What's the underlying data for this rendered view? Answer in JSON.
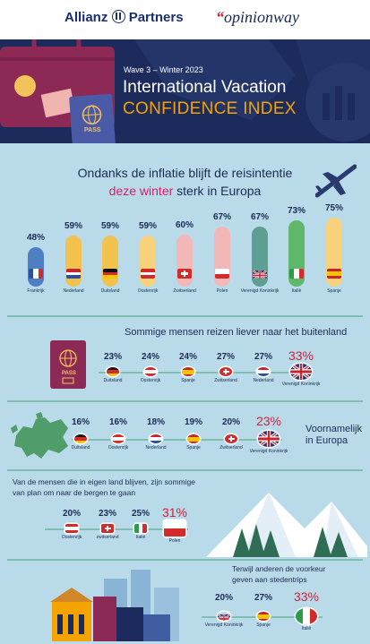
{
  "header": {
    "brand": "Allianz",
    "brand_suffix": "Partners",
    "partner": "opinionway",
    "partner_quote": "“",
    "wave": "Wave 3 – Winter 2023",
    "title_line1": "International Vacation",
    "title_line2": "CONFIDENCE INDEX",
    "pass_label": "PASS"
  },
  "headline": {
    "line1": "Ondanks de inflatie blijft de reisintentie",
    "line2_highlight": "deze winter",
    "line2_rest": " sterk in Europa"
  },
  "sections": {
    "abroad_title": "Sommige mensen reizen liever naar het buitenland",
    "europe_title_line1": "Voornamelijk",
    "europe_title_line2": "in Europa",
    "mountains_title_line1": "Van de mensen die in eigen land blijven, zijn sommige",
    "mountains_title_line2": "van plan om naar de bergen te gaan",
    "city_title_line1": "Terwijl anderen de voorkeur",
    "city_title_line2": "geven aan stedentrips"
  },
  "colors": {
    "navy": "#1c2b5c",
    "accent_orange": "#f4a300",
    "accent_pink": "#d21f6a",
    "accent_red": "#d21f3c",
    "background_light_blue": "#b9dbe9"
  },
  "chart_data": [
    {
      "type": "bar",
      "title": "Ondanks de inflatie blijft de reisintentie deze winter sterk in Europa",
      "categories": [
        "Frankrijk",
        "Nederland",
        "Duitsland",
        "Oostenrijk",
        "Zwitserland",
        "Polen",
        "Verenigd Koninkrijk",
        "Italië",
        "Spanje"
      ],
      "values": [
        48,
        59,
        59,
        59,
        60,
        67,
        67,
        73,
        75
      ],
      "labels": [
        "48%",
        "59%",
        "59%",
        "59%",
        "60%",
        "67%",
        "67%",
        "73%",
        "75%"
      ],
      "bar_colors": [
        "#4f7fc3",
        "#f2c14e",
        "#f2c14e",
        "#f7d27a",
        "#f2b7b7",
        "#f2b7b7",
        "#5f9e93",
        "#5fb86a",
        "#f7d27a"
      ],
      "ylim": [
        0,
        100
      ]
    },
    {
      "type": "bar",
      "title": "Sommige mensen reizen liever naar het buitenland",
      "categories": [
        "Duitsland",
        "Oostenrijk",
        "Spanje",
        "Zwitserland",
        "Nederland",
        "Verenigd Koninkrijk"
      ],
      "values": [
        23,
        24,
        24,
        27,
        27,
        33
      ],
      "labels": [
        "23%",
        "24%",
        "24%",
        "27%",
        "27%",
        "33%"
      ]
    },
    {
      "type": "bar",
      "title": "Voornamelijk in Europa",
      "categories": [
        "Duitsland",
        "Oostenrijk",
        "Nederland",
        "Spanje",
        "Zwitserland",
        "Verenigd Koninkrijk"
      ],
      "values": [
        16,
        16,
        18,
        19,
        20,
        23
      ],
      "labels": [
        "16%",
        "16%",
        "18%",
        "19%",
        "20%",
        "23%"
      ]
    },
    {
      "type": "bar",
      "title": "Van de mensen die in eigen land blijven, zijn sommige van plan om naar de bergen te gaan",
      "categories": [
        "Oostenrijk",
        "zwitserland",
        "Italië",
        "Polen"
      ],
      "values": [
        20,
        23,
        25,
        31
      ],
      "labels": [
        "20%",
        "23%",
        "25%",
        "31%"
      ]
    },
    {
      "type": "bar",
      "title": "Terwijl anderen de voorkeur geven aan stedentrips",
      "categories": [
        "Verenigd Koninkrijk",
        "Spanje",
        "Italië"
      ],
      "values": [
        20,
        27,
        33
      ],
      "labels": [
        "20%",
        "27%",
        "33%"
      ]
    }
  ]
}
